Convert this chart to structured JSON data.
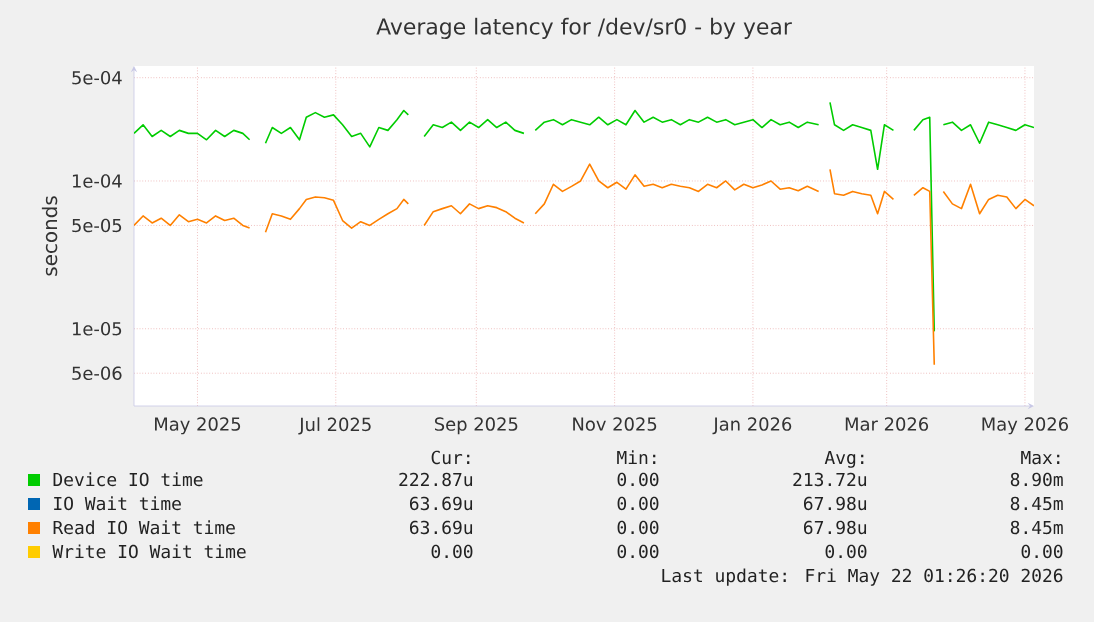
{
  "chart_data": {
    "type": "line",
    "title": "Average latency for /dev/sr0 - by year",
    "ylabel": "seconds",
    "log": "y",
    "grid": true,
    "legend": "bottom",
    "marker": "none",
    "line_style": "solid",
    "xlim": [
      "2025-04-18",
      "2026-05-20"
    ],
    "xticks": [
      {
        "value": "2025-05-16",
        "label": "May 2025"
      },
      {
        "value": "2025-07-16",
        "label": "Jul 2025"
      },
      {
        "value": "2025-09-16",
        "label": "Sep 2025"
      },
      {
        "value": "2025-11-16",
        "label": "Nov 2025"
      },
      {
        "value": "2026-01-16",
        "label": "Jan 2026"
      },
      {
        "value": "2026-03-16",
        "label": "Mar 2026"
      },
      {
        "value": "2026-05-16",
        "label": "May 2026"
      }
    ],
    "ylim": [
      3e-06,
      0.0006
    ],
    "yticks": [
      {
        "value": 5e-06,
        "label": "5e-06"
      },
      {
        "value": 1e-05,
        "label": "1e-05"
      },
      {
        "value": 5e-05,
        "label": "5e-05"
      },
      {
        "value": 0.0001,
        "label": "1e-04"
      },
      {
        "value": 0.0005,
        "label": "5e-04"
      }
    ],
    "x": [
      "2025-04-18",
      "2025-04-22",
      "2025-04-26",
      "2025-04-30",
      "2025-05-04",
      "2025-05-08",
      "2025-05-12",
      "2025-05-16",
      "2025-05-20",
      "2025-05-24",
      "2025-05-28",
      "2025-06-01",
      "2025-06-05",
      "2025-06-08",
      "2025-06-11",
      "2025-06-15",
      "2025-06-18",
      "2025-06-22",
      "2025-06-26",
      "2025-06-30",
      "2025-07-03",
      "2025-07-07",
      "2025-07-11",
      "2025-07-15",
      "2025-07-19",
      "2025-07-23",
      "2025-07-27",
      "2025-07-31",
      "2025-08-04",
      "2025-08-08",
      "2025-08-12",
      "2025-08-15",
      "2025-08-17",
      "2025-08-20",
      "2025-08-24",
      "2025-08-28",
      "2025-09-01",
      "2025-09-05",
      "2025-09-09",
      "2025-09-13",
      "2025-09-17",
      "2025-09-21",
      "2025-09-25",
      "2025-09-29",
      "2025-10-03",
      "2025-10-07",
      "2025-10-10",
      "2025-10-12",
      "2025-10-16",
      "2025-10-20",
      "2025-10-24",
      "2025-10-28",
      "2025-11-01",
      "2025-11-05",
      "2025-11-09",
      "2025-11-13",
      "2025-11-17",
      "2025-11-21",
      "2025-11-25",
      "2025-11-29",
      "2025-12-03",
      "2025-12-07",
      "2025-12-11",
      "2025-12-15",
      "2025-12-19",
      "2025-12-23",
      "2025-12-27",
      "2025-12-31",
      "2026-01-04",
      "2026-01-08",
      "2026-01-12",
      "2026-01-16",
      "2026-01-20",
      "2026-01-24",
      "2026-01-28",
      "2026-02-01",
      "2026-02-05",
      "2026-02-09",
      "2026-02-14",
      "2026-02-17",
      "2026-02-19",
      "2026-02-21",
      "2026-02-25",
      "2026-03-01",
      "2026-03-05",
      "2026-03-09",
      "2026-03-12",
      "2026-03-15",
      "2026-03-19",
      "2026-03-24",
      "2026-03-28",
      "2026-04-01",
      "2026-04-04",
      "2026-04-06",
      "2026-04-08",
      "2026-04-10",
      "2026-04-14",
      "2026-04-18",
      "2026-04-22",
      "2026-04-26",
      "2026-04-30",
      "2026-05-04",
      "2026-05-08",
      "2026-05-12",
      "2026-05-16",
      "2026-05-20"
    ],
    "series": [
      {
        "name": "Device IO time",
        "color": "#00cc00",
        "values": [
          0.00021,
          0.00024,
          0.0002,
          0.00022,
          0.0002,
          0.00022,
          0.00021,
          0.00021,
          0.00019,
          0.00022,
          0.0002,
          0.00022,
          0.00021,
          0.00019,
          null,
          0.00018,
          0.00023,
          0.00021,
          0.00023,
          0.00019,
          0.00027,
          0.00029,
          0.00027,
          0.00028,
          0.00024,
          0.0002,
          0.00021,
          0.00017,
          0.00023,
          0.00022,
          0.00026,
          0.0003,
          0.00028,
          null,
          0.0002,
          0.00024,
          0.00023,
          0.00025,
          0.00022,
          0.00025,
          0.00023,
          0.00026,
          0.00023,
          0.00025,
          0.00022,
          0.00021,
          null,
          0.00022,
          0.00025,
          0.00026,
          0.00024,
          0.00026,
          0.00025,
          0.00024,
          0.00027,
          0.00024,
          0.00026,
          0.00024,
          0.0003,
          0.00025,
          0.00027,
          0.00025,
          0.00026,
          0.00024,
          0.00026,
          0.00025,
          0.00027,
          0.00025,
          0.00026,
          0.00024,
          0.00025,
          0.00026,
          0.00023,
          0.00026,
          0.00024,
          0.00025,
          0.00023,
          0.00025,
          0.00024,
          null,
          0.00034,
          0.00024,
          0.00022,
          0.00024,
          0.00023,
          0.00022,
          0.00012,
          0.00024,
          0.00022,
          null,
          0.00022,
          0.00026,
          0.00027,
          9.6e-06,
          null,
          0.00024,
          0.00025,
          0.00022,
          0.00024,
          0.00018,
          0.00025,
          0.00024,
          0.00023,
          0.00022,
          0.00024,
          0.00023
        ]
      },
      {
        "name": "IO Wait time",
        "color": "#0066b3",
        "values": [
          null,
          null,
          null,
          null,
          null,
          null,
          null,
          null,
          null,
          null,
          null,
          null,
          null,
          null,
          null,
          null,
          null,
          null,
          null,
          null,
          null,
          null,
          null,
          null,
          null,
          null,
          null,
          null,
          null,
          null,
          null,
          null,
          null,
          null,
          null,
          null,
          null,
          null,
          null,
          null,
          null,
          null,
          null,
          null,
          null,
          null,
          null,
          null,
          null,
          null,
          null,
          null,
          null,
          null,
          null,
          null,
          null,
          null,
          null,
          null,
          null,
          null,
          null,
          null,
          null,
          null,
          null,
          null,
          null,
          null,
          null,
          null,
          null,
          null,
          null,
          null,
          null,
          null,
          null,
          null,
          null,
          null,
          null,
          null,
          null,
          null,
          null,
          null,
          null,
          null,
          null,
          null,
          null,
          null,
          null,
          null,
          null,
          null,
          null,
          null,
          null,
          null,
          null,
          null,
          null,
          null
        ]
      },
      {
        "name": "Read IO Wait time",
        "color": "#ff8000",
        "values": [
          5e-05,
          5.8e-05,
          5.2e-05,
          5.6e-05,
          5e-05,
          5.9e-05,
          5.3e-05,
          5.5e-05,
          5.2e-05,
          5.8e-05,
          5.4e-05,
          5.6e-05,
          5e-05,
          4.8e-05,
          null,
          4.5e-05,
          6e-05,
          5.8e-05,
          5.5e-05,
          6.5e-05,
          7.5e-05,
          7.8e-05,
          7.7e-05,
          7.4e-05,
          5.4e-05,
          4.8e-05,
          5.3e-05,
          5e-05,
          5.5e-05,
          6e-05,
          6.5e-05,
          7.5e-05,
          7e-05,
          null,
          5e-05,
          6.2e-05,
          6.5e-05,
          6.8e-05,
          6e-05,
          7e-05,
          6.5e-05,
          6.8e-05,
          6.6e-05,
          6.2e-05,
          5.6e-05,
          5.2e-05,
          null,
          6e-05,
          7e-05,
          9.5e-05,
          8.5e-05,
          9.2e-05,
          0.0001,
          0.00013,
          0.0001,
          9e-05,
          9.8e-05,
          8.8e-05,
          0.00011,
          9.2e-05,
          9.5e-05,
          9e-05,
          9.5e-05,
          9.2e-05,
          9e-05,
          8.5e-05,
          9.5e-05,
          9e-05,
          0.0001,
          8.7e-05,
          9.5e-05,
          9e-05,
          9.4e-05,
          0.0001,
          8.8e-05,
          9e-05,
          8.6e-05,
          9.2e-05,
          8.5e-05,
          null,
          0.00012,
          8.2e-05,
          8e-05,
          8.5e-05,
          8.2e-05,
          8e-05,
          6e-05,
          8.5e-05,
          7.5e-05,
          null,
          8e-05,
          9e-05,
          8.5e-05,
          5.7e-06,
          null,
          8.5e-05,
          7e-05,
          6.5e-05,
          9.5e-05,
          6e-05,
          7.5e-05,
          8e-05,
          7.8e-05,
          6.5e-05,
          7.5e-05,
          6.8e-05
        ]
      },
      {
        "name": "Write IO Wait time",
        "color": "#ffcc00",
        "values": [
          null,
          null,
          null,
          null,
          null,
          null,
          null,
          null,
          null,
          null,
          null,
          null,
          null,
          null,
          null,
          null,
          null,
          null,
          null,
          null,
          null,
          null,
          null,
          null,
          null,
          null,
          null,
          null,
          null,
          null,
          null,
          null,
          null,
          null,
          null,
          null,
          null,
          null,
          null,
          null,
          null,
          null,
          null,
          null,
          null,
          null,
          null,
          null,
          null,
          null,
          null,
          null,
          null,
          null,
          null,
          null,
          null,
          null,
          null,
          null,
          null,
          null,
          null,
          null,
          null,
          null,
          null,
          null,
          null,
          null,
          null,
          null,
          null,
          null,
          null,
          null,
          null,
          null,
          null,
          null,
          null,
          null,
          null,
          null,
          null,
          null,
          null,
          null,
          null,
          null,
          null,
          null,
          null,
          null,
          null,
          null,
          null,
          null,
          null,
          null,
          null,
          null,
          null,
          null,
          null,
          null
        ]
      }
    ],
    "annotations": [
      "Cur:",
      "Min:",
      "Avg:",
      "Max:",
      "222.87u",
      "0.00",
      "213.72u",
      "8.90m",
      "63.69u",
      "0.00",
      "67.98u",
      "8.45m",
      "63.69u",
      "0.00",
      "67.98u",
      "8.45m",
      "0.00",
      "0.00",
      "0.00",
      "0.00",
      "Last update: Fri May 22 01:26:20 2026"
    ]
  }
}
